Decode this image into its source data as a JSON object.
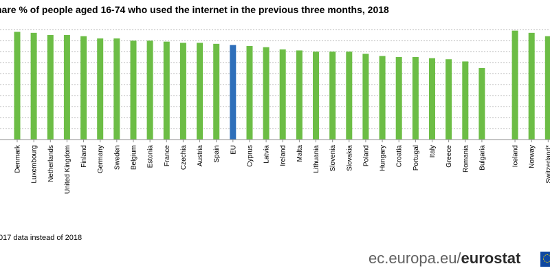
{
  "title": "hare % of people aged 16-74 who used the internet in the previous three months, 2018",
  "footnote": "017 data instead of 2018",
  "source": {
    "domain": "ec.europa.eu/",
    "brand": "eurostat"
  },
  "icons": {
    "logo": "eu-flag-icon"
  },
  "colors": {
    "bar": "#6cbd45",
    "highlight": "#2f6fba",
    "grid": "#b9b9b9",
    "axis": "#8c8c8c"
  },
  "chart_data": {
    "type": "bar",
    "title": "hare % of people aged 16-74 who used the internet in the previous three months, 2018",
    "xlabel": "",
    "ylabel": "",
    "ylim": [
      0,
      100
    ],
    "grid": true,
    "highlight_category": "EU",
    "categories": [
      "Denmark",
      "Luxembourg",
      "Netherlands",
      "United Kingdom",
      "Finland",
      "Germany",
      "Sweden",
      "Belgium",
      "Estonia",
      "France",
      "Czechia",
      "Austria",
      "Spain",
      "EU",
      "Cyprus",
      "Latvia",
      "Ireland",
      "Malta",
      "Lithuania",
      "Slovenia",
      "Slovakia",
      "Poland",
      "Hungary",
      "Croatia",
      "Portugal",
      "Italy",
      "Greece",
      "Romania",
      "Bulgaria",
      "Iceland",
      "Norway",
      "Switzerland*"
    ],
    "values": [
      98,
      97,
      95,
      95,
      94,
      92,
      92,
      90,
      90,
      89,
      88,
      88,
      87,
      86,
      85,
      84,
      82,
      81,
      80,
      80,
      80,
      78,
      76,
      75,
      75,
      74,
      73,
      71,
      65,
      99,
      97,
      94
    ],
    "group_break_before": "Iceland"
  }
}
